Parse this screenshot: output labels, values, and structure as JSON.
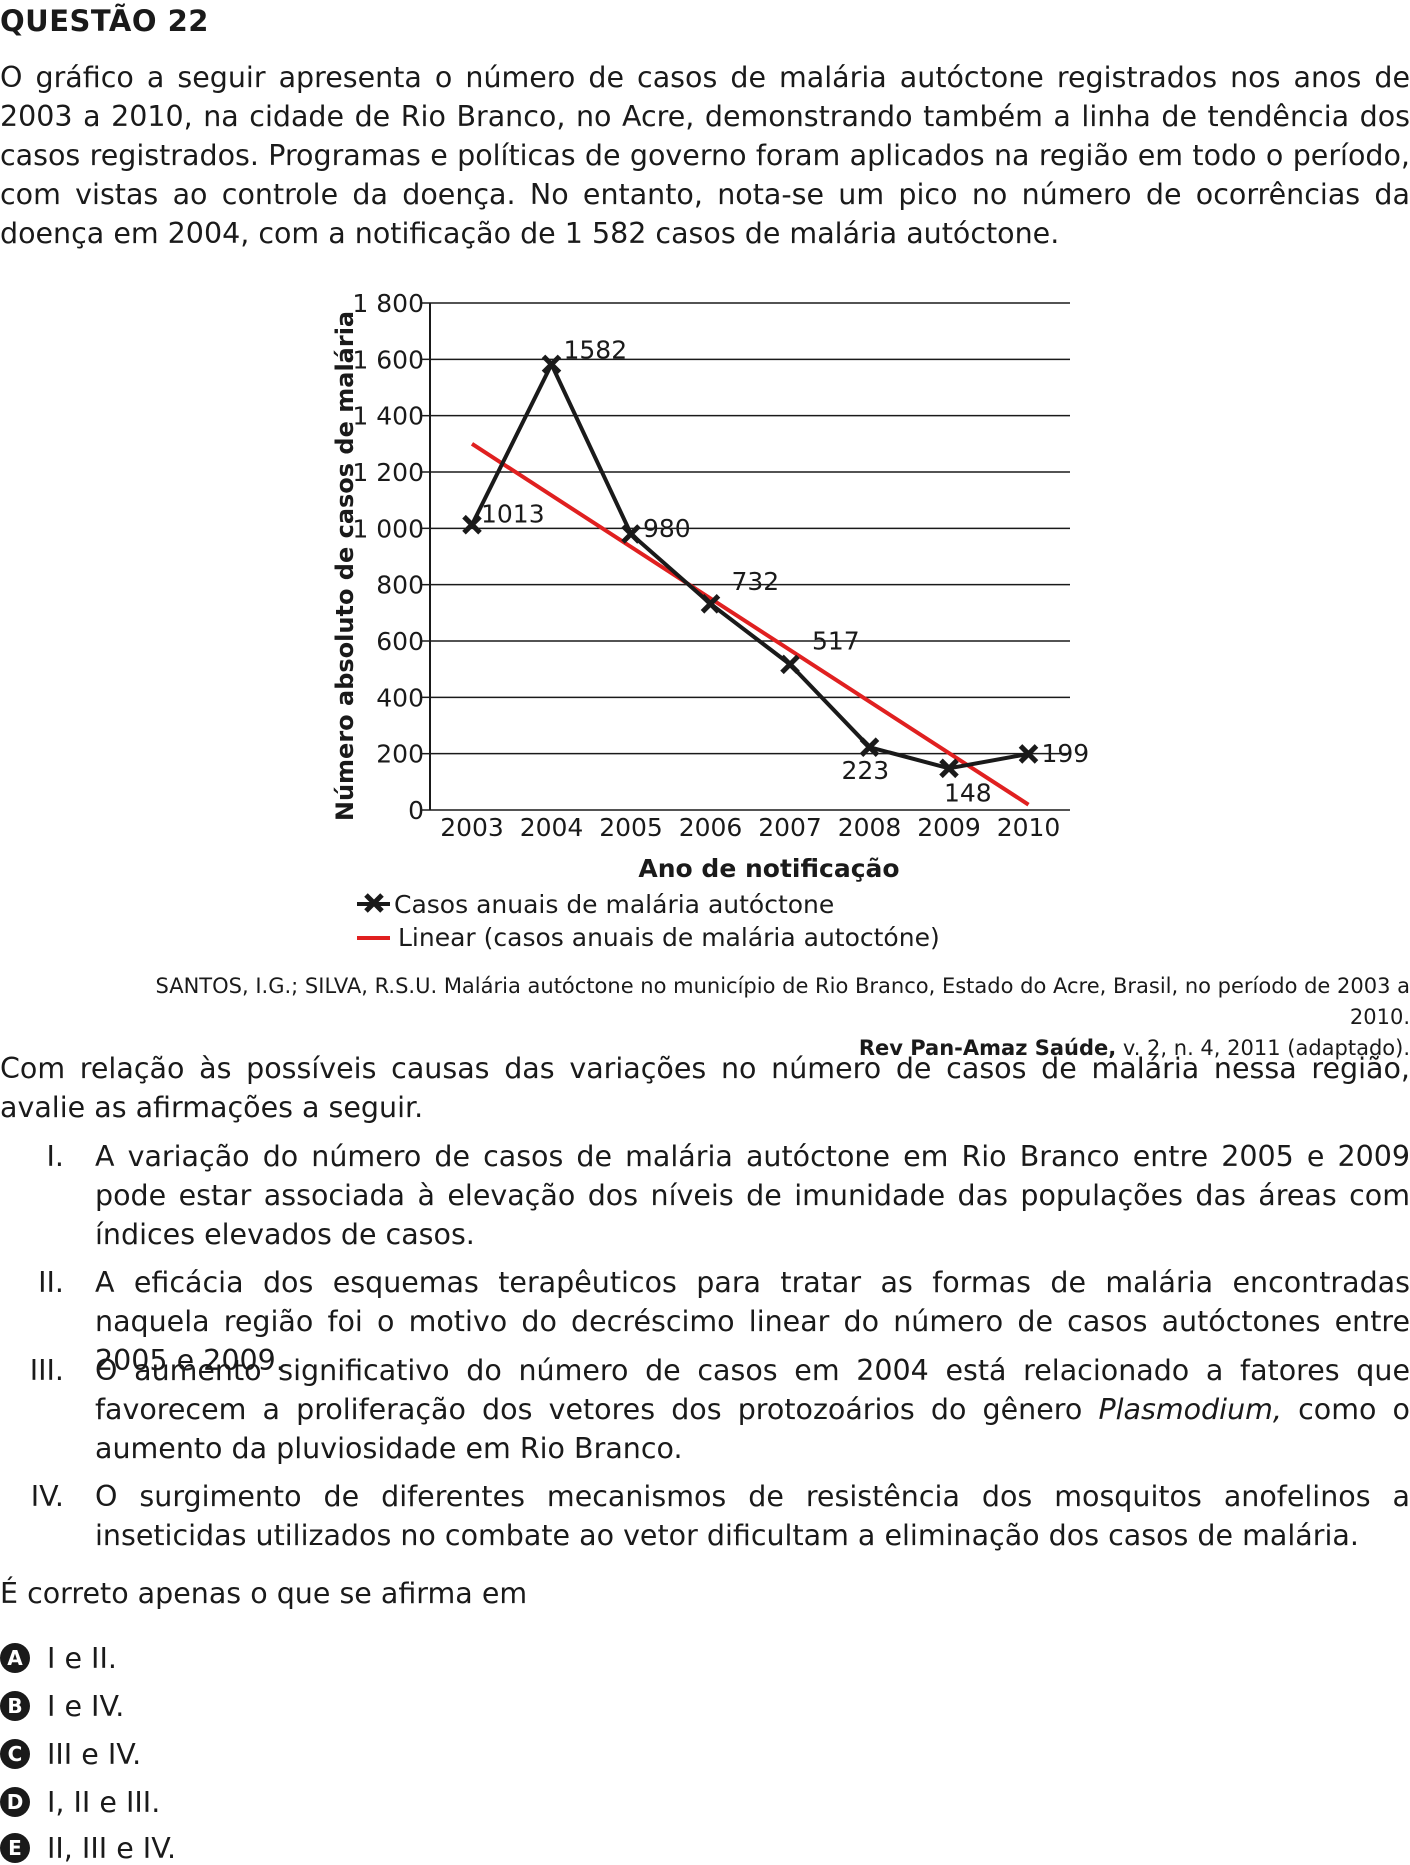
{
  "question_title": "QUESTÃO 22",
  "intro": "O gráfico a seguir apresenta o número de casos de malária autóctone registrados nos anos de 2003 a 2010, na cidade de Rio Branco, no Acre, demonstrando também a linha de tendência dos casos registrados. Programas e políticas de governo foram aplicados na região em todo o período, com vistas ao controle da doença. No entanto, nota-se um pico no número de ocorrências da doença em 2004, com a notificação de 1 582 casos de malária autóctone.",
  "chart_data": {
    "type": "line",
    "x": [
      "2003",
      "2004",
      "2005",
      "2006",
      "2007",
      "2008",
      "2009",
      "2010"
    ],
    "series": [
      {
        "name": "Casos anuais de malária autóctone",
        "values": [
          1013,
          1582,
          980,
          732,
          517,
          223,
          148,
          199
        ],
        "color": "#1a1a1a",
        "marker": "x"
      },
      {
        "name": "Linear (casos anuais de malária autoctóne)",
        "values": [
          1300,
          1117,
          934,
          751,
          568,
          385,
          202,
          19
        ],
        "color": "#e02020",
        "marker": "none"
      }
    ],
    "data_labels": [
      "1013",
      "1582",
      "980",
      "732",
      "517",
      "223",
      "148",
      "199"
    ],
    "xlabel": "Ano de notificação",
    "ylabel": "Número absoluto de casos de malária",
    "ylim": [
      0,
      1800
    ],
    "yticks": [
      0,
      200,
      400,
      600,
      800,
      1000,
      1200,
      1400,
      1600,
      1800
    ],
    "ytick_labels": [
      "0",
      "200",
      "400",
      "600",
      "800",
      "1 000",
      "1 200",
      "1 400",
      "1 600",
      "1 800"
    ],
    "grid": true,
    "legend_position": "bottom"
  },
  "source_line1": "SANTOS, I.G.; SILVA, R.S.U. Malária autóctone no município de Rio Branco, Estado do Acre, Brasil, no período de 2003 a 2010.",
  "source_journal": "Rev Pan-Amaz Saúde,",
  "source_rest": " v. 2, n. 4, 2011 (adaptado).",
  "question": "Com relação às possíveis causas das variações no número de casos de malária nessa região, avalie as afirmações a seguir.",
  "statements": [
    {
      "num": "I.",
      "pre": "A variação do número de casos de malária autóctone em Rio Branco entre 2005 e 2009 pode estar associada à elevação dos níveis de imunidade das populações das áreas com índices elevados de casos.",
      "italic": "",
      "post": ""
    },
    {
      "num": "II.",
      "pre": "A eficácia dos esquemas terapêuticos para tratar as formas de malária encontradas naquela região foi o motivo do decréscimo linear do número de casos autóctones entre 2005 e 2009.",
      "italic": "",
      "post": ""
    },
    {
      "num": "III.",
      "pre": "O aumento significativo do número de casos em 2004 está relacionado a fatores que favorecem a proliferação dos vetores dos protozoários do gênero ",
      "italic": "Plasmodium,",
      "post": " como o aumento da pluviosidade em Rio Branco."
    },
    {
      "num": "IV.",
      "pre": "O surgimento de diferentes mecanismos de resistência dos mosquitos anofelinos a inseticidas utilizados no combate ao vetor dificultam a eliminação dos casos de malária.",
      "italic": "",
      "post": ""
    }
  ],
  "prompt": "É correto apenas o que se afirma em",
  "options": [
    {
      "letter": "A",
      "text": "I e II."
    },
    {
      "letter": "B",
      "text": "I e IV."
    },
    {
      "letter": "C",
      "text": "III e IV."
    },
    {
      "letter": "D",
      "text": "I, II e III."
    },
    {
      "letter": "E",
      "text": "II, III e IV."
    }
  ]
}
